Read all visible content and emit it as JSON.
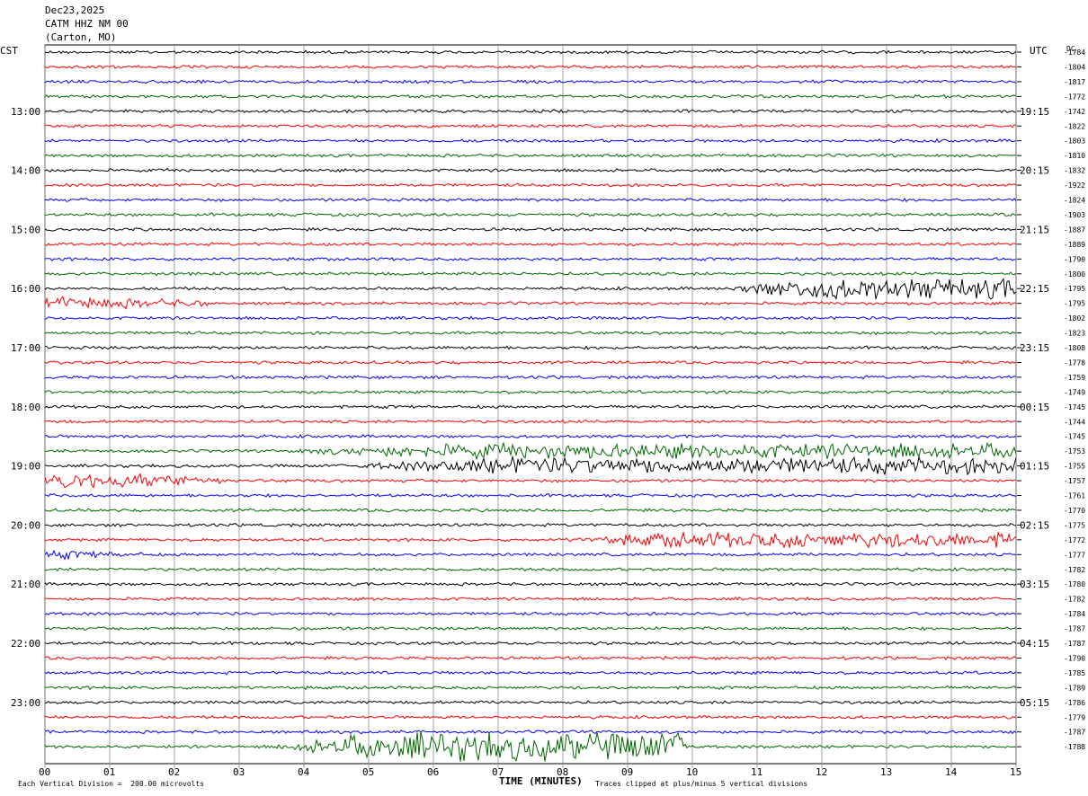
{
  "header": {
    "date": "Dec23,2025",
    "station": "CATM HHZ NM 00",
    "location": "(Carton, MO)"
  },
  "labels": {
    "left_zone": "CST",
    "right_zone": "UTC",
    "dc_header": "DC",
    "xlabel": "TIME (MINUTES)",
    "scale_note": "Each Vertical Division =  200.00 microvolts",
    "clip_note": "Traces clipped at plus/minus 5 vertical divisions"
  },
  "chart_data": {
    "type": "line",
    "x_ticks": [
      "00",
      "01",
      "02",
      "03",
      "04",
      "05",
      "06",
      "07",
      "08",
      "09",
      "10",
      "11",
      "12",
      "13",
      "14",
      "15"
    ],
    "xlim": [
      0,
      15
    ],
    "left_hour_labels": [
      "13:00",
      "14:00",
      "15:00",
      "16:00",
      "17:00",
      "18:00",
      "19:00",
      "20:00",
      "21:00",
      "22:00",
      "23:00"
    ],
    "right_hour_labels": [
      "19:15",
      "20:15",
      "21:15",
      "22:15",
      "23:15",
      "00:15",
      "01:15",
      "02:15",
      "03:15",
      "04:15",
      "05:15"
    ],
    "trace_colors": [
      "#000000",
      "#ff0000",
      "#0000ff",
      "#006600"
    ],
    "dc_offsets": [
      -1784,
      -1804,
      -1817,
      -1772,
      -1742,
      -1822,
      -1803,
      -1810,
      -1832,
      -1922,
      -1824,
      -1903,
      -1887,
      -1889,
      -1790,
      -1800,
      -1795,
      -1795,
      -1802,
      -1823,
      -1808,
      -1778,
      -1759,
      -1749,
      -1745,
      -1744,
      -1745,
      -1753,
      -1755,
      -1757,
      -1761,
      -1770,
      -1775,
      -1772,
      -1777,
      -1782,
      -1780,
      -1782,
      -1784,
      -1787,
      -1787,
      -1790,
      -1785,
      -1789,
      -1786,
      -1779,
      -1787,
      -1788
    ],
    "events": [
      {
        "trace": 16,
        "start_min": 10.5,
        "end_min": 15,
        "amplitude": 3.5
      },
      {
        "trace": 17,
        "start_min": 0,
        "end_min": 2.5,
        "amplitude": 2.2
      },
      {
        "trace": 27,
        "start_min": 3.5,
        "end_min": 15,
        "amplitude": 2.4
      },
      {
        "trace": 28,
        "start_min": 4.5,
        "end_min": 15,
        "amplitude": 2.8
      },
      {
        "trace": 29,
        "start_min": 0,
        "end_min": 2.8,
        "amplitude": 3.0
      },
      {
        "trace": 33,
        "start_min": 8,
        "end_min": 15,
        "amplitude": 2.5
      },
      {
        "trace": 34,
        "start_min": 0,
        "end_min": 1.5,
        "amplitude": 1.2
      },
      {
        "trace": 47,
        "start_min": 3.5,
        "end_min": 10,
        "amplitude": 5.0
      }
    ]
  }
}
